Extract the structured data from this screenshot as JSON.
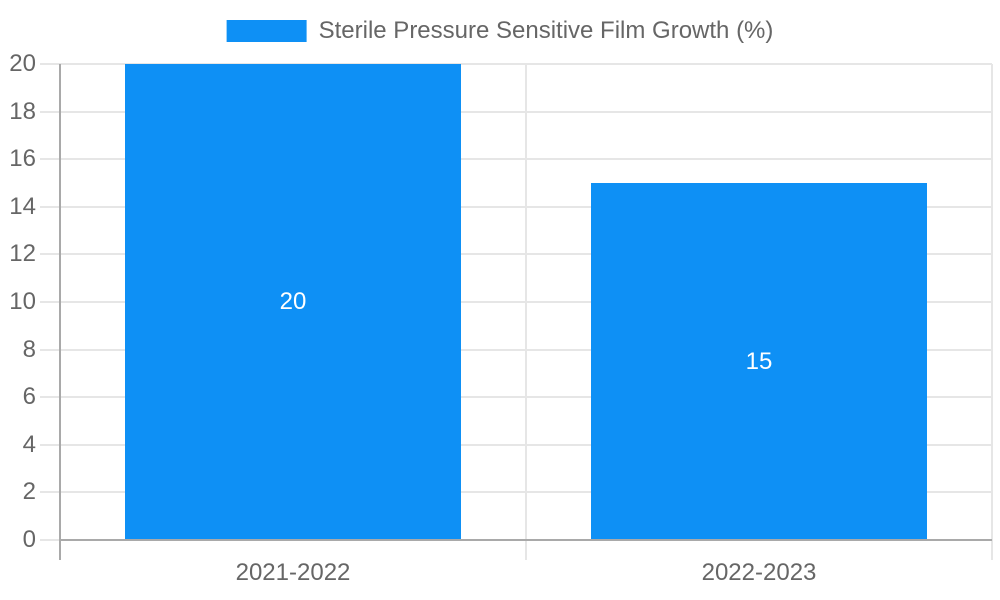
{
  "legend": {
    "position": "top-center"
  },
  "chart_data": {
    "type": "bar",
    "title": "",
    "xlabel": "",
    "ylabel": "",
    "categories": [
      "2021-2022",
      "2022-2023"
    ],
    "series": [
      {
        "name": "Sterile Pressure Sensitive Film Growth (%)",
        "color": "#0e90f5",
        "values": [
          20,
          15
        ],
        "data_labels": [
          "20",
          "15"
        ]
      }
    ],
    "ylim": [
      0,
      20
    ],
    "ytick_step": 2,
    "ytick_labels": [
      "0",
      "2",
      "4",
      "6",
      "8",
      "10",
      "12",
      "14",
      "16",
      "18",
      "20"
    ],
    "grid": true,
    "legend_position": "top",
    "bar_width_ratio": 0.723,
    "colors": {
      "bar": "#0e90f5",
      "grid": "#e6e6e6",
      "axis": "#a9a9a9",
      "tick_text": "#666666",
      "data_label_text": "#ffffff",
      "background": "#ffffff"
    }
  }
}
